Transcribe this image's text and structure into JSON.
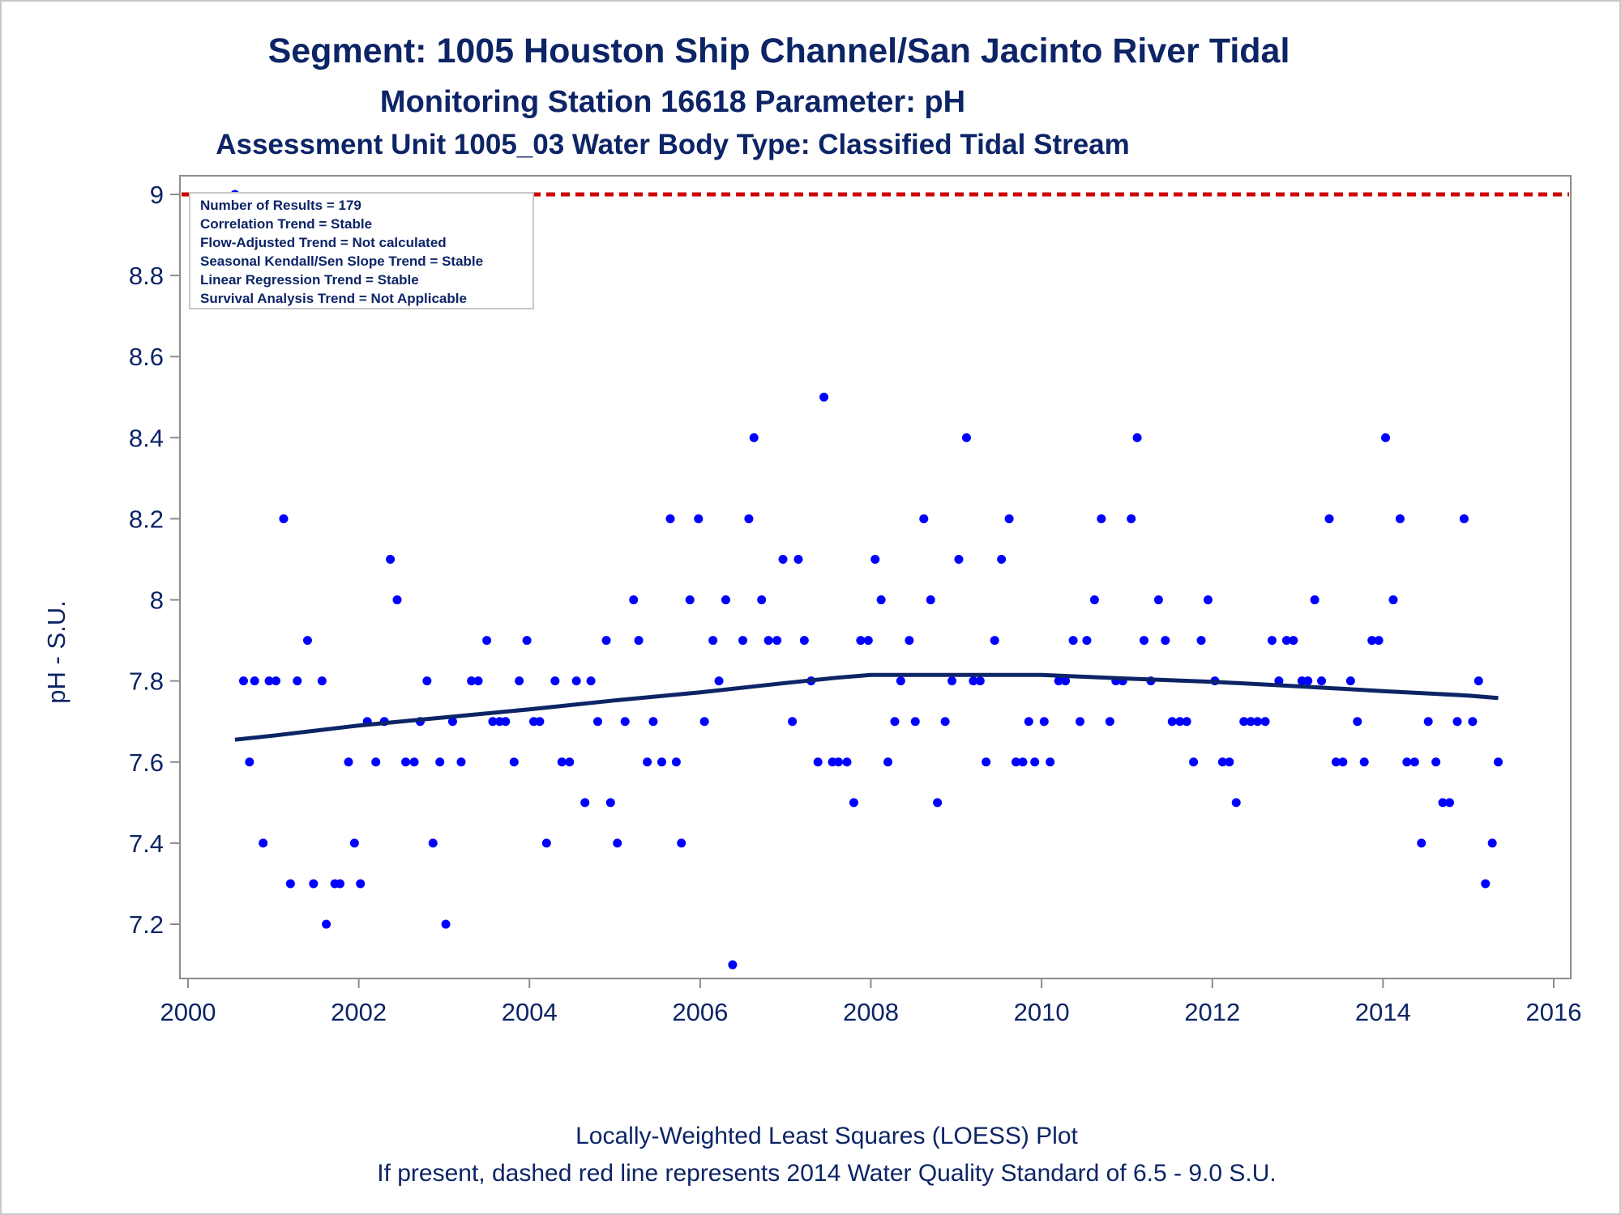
{
  "header": {
    "title": "Segment: 1005  Houston Ship Channel/San Jacinto River Tidal",
    "subtitle1": "Monitoring Station 16618 Parameter: pH",
    "subtitle2": "Assessment Unit 1005_03   Water Body Type: Classified Tidal Stream"
  },
  "stats_box": {
    "line1": "Number of Results = 179",
    "line2": "Correlation Trend = Stable",
    "line3": "Flow-Adjusted Trend = Not calculated",
    "line4": "Seasonal Kendall/Sen Slope Trend = Stable",
    "line5": "Linear Regression Trend = Stable",
    "line6": "Survival Analysis Trend = Not Applicable"
  },
  "footer": {
    "line1": "Locally-Weighted Least Squares (LOESS) Plot",
    "line2": "If present, dashed red line represents 2014 Water Quality Standard of 6.5 - 9.0 S.U."
  },
  "colors": {
    "text": "#0d2466",
    "points": "#0000ff",
    "loess": "#0d2466",
    "standard_line": "#cc0000",
    "frame": "#8c8c8c"
  },
  "chart_data": {
    "type": "scatter",
    "ylabel": "pH - S.U.",
    "xlabel": "",
    "xlim": [
      2000,
      2016
    ],
    "ylim": [
      7.1,
      9.0
    ],
    "x_ticks": [
      "2000",
      "2002",
      "2004",
      "2006",
      "2008",
      "2010",
      "2012",
      "2014",
      "2016"
    ],
    "y_ticks": [
      "7.2",
      "7.4",
      "7.6",
      "7.8",
      "8",
      "8.2",
      "8.4",
      "8.6",
      "8.8",
      "9"
    ],
    "grid": false,
    "standard_line": {
      "y": 9.0,
      "style": "dashed",
      "color": "#cc0000"
    },
    "points": [
      [
        2000.55,
        9.0
      ],
      [
        2000.65,
        7.8
      ],
      [
        2000.72,
        7.6
      ],
      [
        2000.78,
        7.8
      ],
      [
        2000.88,
        7.4
      ],
      [
        2000.95,
        7.8
      ],
      [
        2001.03,
        7.8
      ],
      [
        2001.12,
        8.2
      ],
      [
        2001.2,
        7.3
      ],
      [
        2001.28,
        7.8
      ],
      [
        2001.4,
        7.9
      ],
      [
        2001.47,
        7.3
      ],
      [
        2001.57,
        7.8
      ],
      [
        2001.62,
        7.2
      ],
      [
        2001.72,
        7.3
      ],
      [
        2001.78,
        7.3
      ],
      [
        2001.88,
        7.6
      ],
      [
        2001.95,
        7.4
      ],
      [
        2002.02,
        7.3
      ],
      [
        2002.1,
        7.7
      ],
      [
        2002.2,
        7.6
      ],
      [
        2002.3,
        7.7
      ],
      [
        2002.37,
        8.1
      ],
      [
        2002.45,
        8.0
      ],
      [
        2002.55,
        7.6
      ],
      [
        2002.65,
        7.6
      ],
      [
        2002.72,
        7.7
      ],
      [
        2002.8,
        7.8
      ],
      [
        2002.87,
        7.4
      ],
      [
        2002.95,
        7.6
      ],
      [
        2003.02,
        7.2
      ],
      [
        2003.1,
        7.7
      ],
      [
        2003.2,
        7.6
      ],
      [
        2003.32,
        7.8
      ],
      [
        2003.4,
        7.8
      ],
      [
        2003.5,
        7.9
      ],
      [
        2003.57,
        7.7
      ],
      [
        2003.65,
        7.7
      ],
      [
        2003.72,
        7.7
      ],
      [
        2003.82,
        7.6
      ],
      [
        2003.88,
        7.8
      ],
      [
        2003.97,
        7.9
      ],
      [
        2004.05,
        7.7
      ],
      [
        2004.12,
        7.7
      ],
      [
        2004.2,
        7.4
      ],
      [
        2004.3,
        7.8
      ],
      [
        2004.38,
        7.6
      ],
      [
        2004.47,
        7.6
      ],
      [
        2004.55,
        7.8
      ],
      [
        2004.65,
        7.5
      ],
      [
        2004.72,
        7.8
      ],
      [
        2004.8,
        7.7
      ],
      [
        2004.9,
        7.9
      ],
      [
        2004.95,
        7.5
      ],
      [
        2005.03,
        7.4
      ],
      [
        2005.12,
        7.7
      ],
      [
        2005.22,
        8.0
      ],
      [
        2005.28,
        7.9
      ],
      [
        2005.38,
        7.6
      ],
      [
        2005.45,
        7.7
      ],
      [
        2005.55,
        7.6
      ],
      [
        2005.65,
        8.2
      ],
      [
        2005.72,
        7.6
      ],
      [
        2005.78,
        7.4
      ],
      [
        2005.88,
        8.0
      ],
      [
        2005.98,
        8.2
      ],
      [
        2006.05,
        7.7
      ],
      [
        2006.15,
        7.9
      ],
      [
        2006.22,
        7.8
      ],
      [
        2006.3,
        8.0
      ],
      [
        2006.38,
        7.1
      ],
      [
        2006.5,
        7.9
      ],
      [
        2006.57,
        8.2
      ],
      [
        2006.63,
        8.4
      ],
      [
        2006.72,
        8.0
      ],
      [
        2006.8,
        7.9
      ],
      [
        2006.9,
        7.9
      ],
      [
        2006.97,
        8.1
      ],
      [
        2007.08,
        7.7
      ],
      [
        2007.15,
        8.1
      ],
      [
        2007.22,
        7.9
      ],
      [
        2007.3,
        7.8
      ],
      [
        2007.38,
        7.6
      ],
      [
        2007.45,
        8.5
      ],
      [
        2007.55,
        7.6
      ],
      [
        2007.62,
        7.6
      ],
      [
        2007.72,
        7.6
      ],
      [
        2007.8,
        7.5
      ],
      [
        2007.88,
        7.9
      ],
      [
        2007.97,
        7.9
      ],
      [
        2008.05,
        8.1
      ],
      [
        2008.12,
        8.0
      ],
      [
        2008.2,
        7.6
      ],
      [
        2008.28,
        7.7
      ],
      [
        2008.35,
        7.8
      ],
      [
        2008.45,
        7.9
      ],
      [
        2008.52,
        7.7
      ],
      [
        2008.62,
        8.2
      ],
      [
        2008.7,
        8.0
      ],
      [
        2008.78,
        7.5
      ],
      [
        2008.87,
        7.7
      ],
      [
        2008.95,
        7.8
      ],
      [
        2009.03,
        8.1
      ],
      [
        2009.12,
        8.4
      ],
      [
        2009.2,
        7.8
      ],
      [
        2009.28,
        7.8
      ],
      [
        2009.35,
        7.6
      ],
      [
        2009.45,
        7.9
      ],
      [
        2009.53,
        8.1
      ],
      [
        2009.62,
        8.2
      ],
      [
        2009.7,
        7.6
      ],
      [
        2009.78,
        7.6
      ],
      [
        2009.85,
        7.7
      ],
      [
        2009.92,
        7.6
      ],
      [
        2010.03,
        7.7
      ],
      [
        2010.1,
        7.6
      ],
      [
        2010.2,
        7.8
      ],
      [
        2010.28,
        7.8
      ],
      [
        2010.37,
        7.9
      ],
      [
        2010.45,
        7.7
      ],
      [
        2010.53,
        7.9
      ],
      [
        2010.62,
        8.0
      ],
      [
        2010.7,
        8.2
      ],
      [
        2010.8,
        7.7
      ],
      [
        2010.87,
        7.8
      ],
      [
        2010.95,
        7.8
      ],
      [
        2011.05,
        8.2
      ],
      [
        2011.12,
        8.4
      ],
      [
        2011.2,
        7.9
      ],
      [
        2011.28,
        7.8
      ],
      [
        2011.37,
        8.0
      ],
      [
        2011.45,
        7.9
      ],
      [
        2011.53,
        7.7
      ],
      [
        2011.62,
        7.7
      ],
      [
        2011.7,
        7.7
      ],
      [
        2011.78,
        7.6
      ],
      [
        2011.87,
        7.9
      ],
      [
        2011.95,
        8.0
      ],
      [
        2012.03,
        7.8
      ],
      [
        2012.12,
        7.6
      ],
      [
        2012.2,
        7.6
      ],
      [
        2012.28,
        7.5
      ],
      [
        2012.37,
        7.7
      ],
      [
        2012.45,
        7.7
      ],
      [
        2012.53,
        7.7
      ],
      [
        2012.62,
        7.7
      ],
      [
        2012.7,
        7.9
      ],
      [
        2012.78,
        7.8
      ],
      [
        2012.87,
        7.9
      ],
      [
        2012.95,
        7.9
      ],
      [
        2013.05,
        7.8
      ],
      [
        2013.12,
        7.8
      ],
      [
        2013.2,
        8.0
      ],
      [
        2013.28,
        7.8
      ],
      [
        2013.37,
        8.2
      ],
      [
        2013.45,
        7.6
      ],
      [
        2013.53,
        7.6
      ],
      [
        2013.62,
        7.8
      ],
      [
        2013.7,
        7.7
      ],
      [
        2013.78,
        7.6
      ],
      [
        2013.87,
        7.9
      ],
      [
        2013.95,
        7.9
      ],
      [
        2014.03,
        8.4
      ],
      [
        2014.12,
        8.0
      ],
      [
        2014.2,
        8.2
      ],
      [
        2014.28,
        7.6
      ],
      [
        2014.37,
        7.6
      ],
      [
        2014.45,
        7.4
      ],
      [
        2014.53,
        7.7
      ],
      [
        2014.62,
        7.6
      ],
      [
        2014.7,
        7.5
      ],
      [
        2014.78,
        7.5
      ],
      [
        2014.87,
        7.7
      ],
      [
        2014.95,
        8.2
      ],
      [
        2015.05,
        7.7
      ],
      [
        2015.12,
        7.8
      ],
      [
        2015.2,
        7.3
      ],
      [
        2015.28,
        7.4
      ],
      [
        2015.35,
        7.6
      ]
    ],
    "loess": [
      [
        2000.55,
        7.655
      ],
      [
        2001.0,
        7.665
      ],
      [
        2002.0,
        7.69
      ],
      [
        2003.0,
        7.71
      ],
      [
        2004.0,
        7.73
      ],
      [
        2005.0,
        7.752
      ],
      [
        2006.0,
        7.772
      ],
      [
        2007.0,
        7.795
      ],
      [
        2007.6,
        7.808
      ],
      [
        2008.0,
        7.815
      ],
      [
        2009.0,
        7.815
      ],
      [
        2010.0,
        7.815
      ],
      [
        2011.0,
        7.806
      ],
      [
        2012.0,
        7.798
      ],
      [
        2013.0,
        7.787
      ],
      [
        2014.0,
        7.775
      ],
      [
        2015.0,
        7.764
      ],
      [
        2015.35,
        7.758
      ]
    ]
  }
}
